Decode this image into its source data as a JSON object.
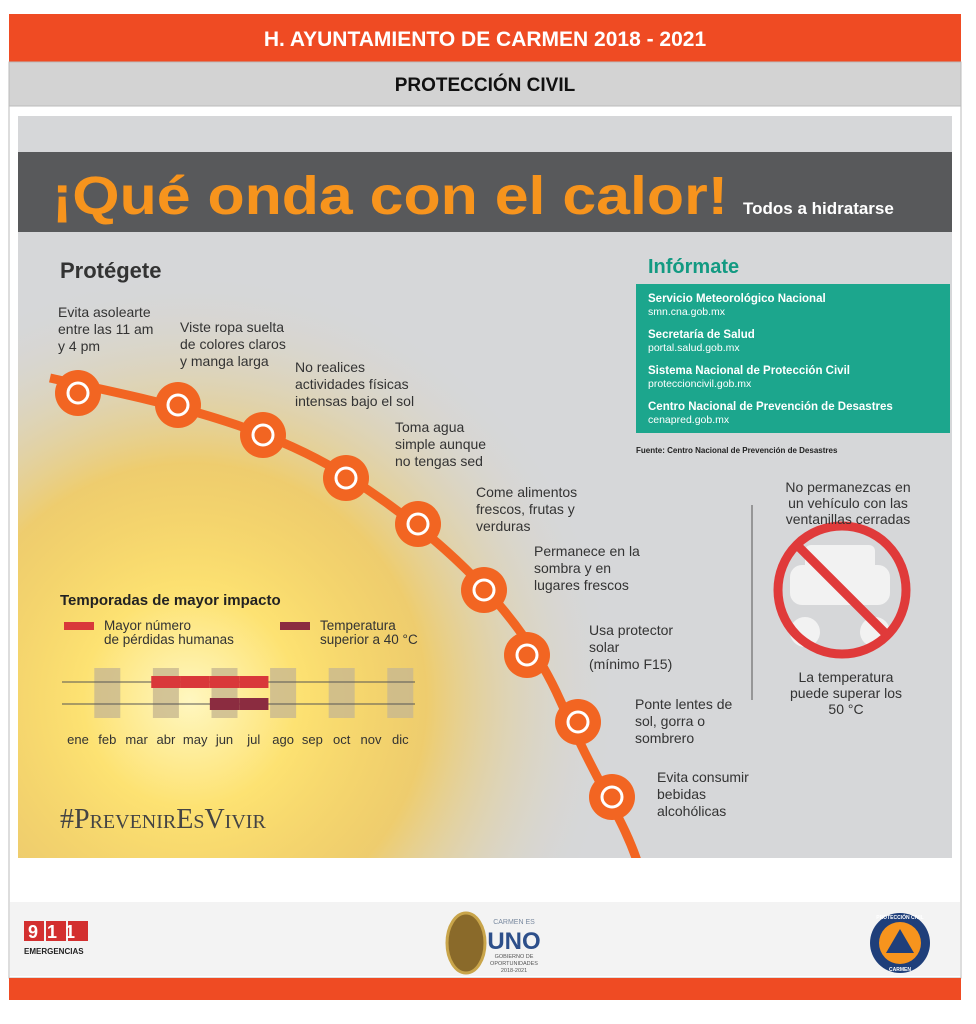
{
  "header": {
    "title": "H. AYUNTAMIENTO DE CARMEN 2018 - 2021",
    "subtitle": "PROTECCIÓN CIVIL"
  },
  "banner": {
    "title": "¡Qué onda con el calor!",
    "tagline": "Todos a hidratarse"
  },
  "protect": {
    "title": "Protégete",
    "steps": [
      [
        "Evita asolearte",
        "entre las 11 am",
        "y 4 pm"
      ],
      [
        "Viste ropa suelta",
        "de colores claros",
        "y manga larga"
      ],
      [
        "No realices",
        "actividades físicas",
        "intensas bajo el sol"
      ],
      [
        "Toma agua",
        "simple aunque",
        "no tengas sed"
      ],
      [
        "Come alimentos",
        "frescos, frutas y",
        "verduras"
      ],
      [
        "Permanece en la",
        "sombra y en",
        "lugares frescos"
      ],
      [
        "Usa protector",
        "solar",
        "(mínimo F15)"
      ],
      [
        "Ponte lentes de",
        "sol, gorra o",
        "sombrero"
      ],
      [
        "Evita consumir",
        "bebidas",
        "alcohólicas"
      ]
    ]
  },
  "info": {
    "title": "Infórmate",
    "sources": [
      {
        "name": "Servicio Meteorológico Nacional",
        "url": "smn.cna.gob.mx"
      },
      {
        "name": "Secretaría de Salud",
        "url": "portal.salud.gob.mx"
      },
      {
        "name": "Sistema Nacional de Protección Civil",
        "url": "proteccioncivil.gob.mx"
      },
      {
        "name": "Centro Nacional de Prevención de Desastres",
        "url": "cenapred.gob.mx"
      }
    ],
    "note": "Fuente: Centro Nacional de Prevención de Desastres"
  },
  "warning": {
    "top": [
      "No permanezcas en",
      "un vehículo con las",
      "ventanillas cerradas"
    ],
    "bottom": [
      "La temperatura",
      "puede superar los",
      "50 °C"
    ]
  },
  "seasons": {
    "title": "Temporadas de mayor impacto",
    "months": [
      "ene",
      "feb",
      "mar",
      "abr",
      "may",
      "jun",
      "jul",
      "ago",
      "sep",
      "oct",
      "nov",
      "dic"
    ],
    "series": [
      {
        "name": [
          "Mayor número",
          "de pérdidas humanas"
        ],
        "color": "#d9383a",
        "values": [
          0,
          0,
          0,
          1,
          1,
          1,
          1,
          0,
          0,
          0,
          0,
          0
        ]
      },
      {
        "name": [
          "Temperatura",
          "superior a 40 °C"
        ],
        "color": "#8b2c40",
        "values": [
          0,
          0,
          0,
          0,
          0,
          1,
          1,
          0,
          0,
          0,
          0,
          0
        ]
      }
    ]
  },
  "hashtag": "#PrevenirEsVivir",
  "footer": {
    "emergency": "911",
    "emergency_label": "EMERGENCIAS",
    "logo_top": "CARMEN ES",
    "logo_main": "UNO",
    "logo_sub": [
      "GOBIERNO DE",
      "OPORTUNIDADES",
      "2018-2021"
    ],
    "badge": [
      "PROTECCIÓN CIVIL",
      "CARMEN"
    ]
  }
}
